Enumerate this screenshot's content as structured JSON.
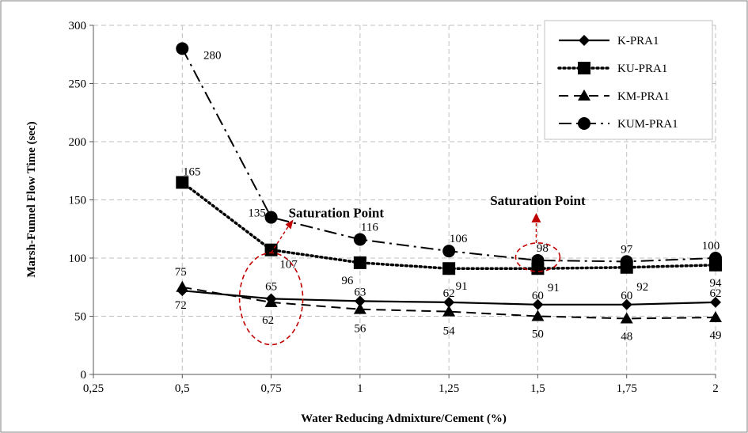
{
  "chart_data": {
    "type": "line",
    "xlabel": "Water Reducing Admixture/Cement  (%)",
    "ylabel": "Marsh-Funnel Flow Time (sec)",
    "xlim": [
      0.25,
      2
    ],
    "ylim": [
      0,
      300
    ],
    "grid": true,
    "legend_position": "top-right",
    "x_ticks": [
      0.25,
      0.5,
      0.75,
      1,
      1.25,
      1.5,
      1.75,
      2
    ],
    "x_tick_labels": [
      "0,25",
      "0,5",
      "0,75",
      "1",
      "1,25",
      "1,5",
      "1,75",
      "2"
    ],
    "y_ticks": [
      0,
      50,
      100,
      150,
      200,
      250,
      300
    ],
    "y_tick_labels": [
      "0",
      "50",
      "100",
      "150",
      "200",
      "250",
      "300"
    ],
    "x": [
      0.5,
      0.75,
      1,
      1.25,
      1.5,
      1.75,
      2
    ],
    "series": [
      {
        "name": "K-PRA1",
        "values": [
          72,
          65,
          63,
          62,
          60,
          60,
          62
        ],
        "labels": [
          "72",
          "65",
          "63",
          "62",
          "60",
          "60",
          "62"
        ],
        "marker": "diamond",
        "line": "solid",
        "color": "#000000"
      },
      {
        "name": "KU-PRA1",
        "values": [
          165,
          107,
          96,
          91,
          91,
          92,
          94
        ],
        "labels": [
          "165",
          "107",
          "96",
          "91",
          "91",
          "92",
          "94"
        ],
        "marker": "square",
        "line": "dotted",
        "color": "#000000"
      },
      {
        "name": "KM-PRA1",
        "values": [
          75,
          62,
          56,
          54,
          50,
          48,
          49
        ],
        "labels": [
          "75",
          "62",
          "56",
          "54",
          "50",
          "48",
          "49"
        ],
        "marker": "triangle",
        "line": "dashed",
        "color": "#000000"
      },
      {
        "name": "KUM-PRA1",
        "values": [
          280,
          135,
          116,
          106,
          98,
          97,
          100
        ],
        "labels": [
          "280",
          "135",
          "116",
          "106",
          "98",
          "97",
          "100"
        ],
        "marker": "circle",
        "line": "dashdot",
        "color": "#000000"
      }
    ],
    "annotations": [
      {
        "text": "Saturation Point",
        "x": 0.75,
        "y": 65,
        "color": "#c00000"
      },
      {
        "text": "Saturation Point",
        "x": 1.5,
        "y": 98,
        "color": "#c00000"
      }
    ]
  }
}
